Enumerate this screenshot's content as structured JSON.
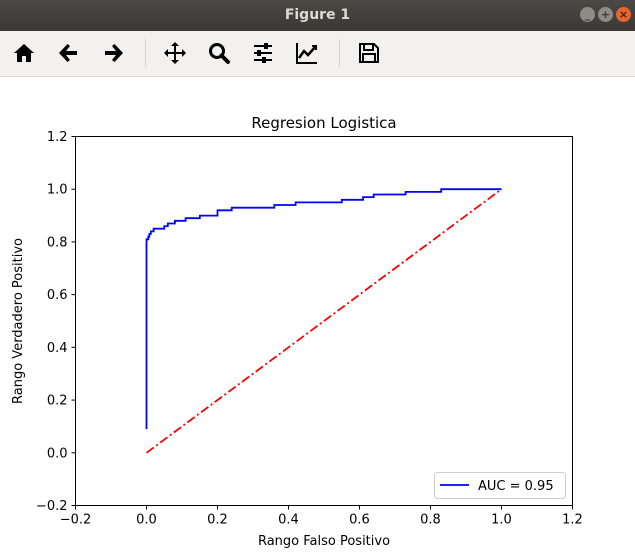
{
  "window": {
    "title": "Figure 1",
    "controls": [
      "_",
      "+",
      "×"
    ]
  },
  "toolbar": {
    "icons": [
      "home-icon",
      "back-arrow-icon",
      "forward-arrow-icon",
      "pan-move-icon",
      "zoom-magnifier-icon",
      "subplots-config-icon",
      "edit-axes-icon",
      "save-floppy-icon"
    ]
  },
  "colors": {
    "roc_line": "#0000ff",
    "diagonal": "#ff0000",
    "titlebar": "#3c3b37",
    "toolbar": "#f2f1f0"
  },
  "chart_data": {
    "type": "line",
    "title": "Regresion Logistica",
    "xlabel": "Rango Falso Positivo",
    "ylabel": "Rango Verdadero Positivo",
    "xlim": [
      -0.2,
      1.2
    ],
    "ylim": [
      -0.2,
      1.2
    ],
    "xticks": [
      -0.2,
      0.0,
      0.2,
      0.4,
      0.6,
      0.8,
      1.0,
      1.2
    ],
    "yticks": [
      -0.2,
      0.0,
      0.2,
      0.4,
      0.6,
      0.8,
      1.0,
      1.2
    ],
    "xtick_labels": [
      "−0.2",
      "0.0",
      "0.2",
      "0.4",
      "0.6",
      "0.8",
      "1.0",
      "1.2"
    ],
    "ytick_labels": [
      "−0.2",
      "0.0",
      "0.2",
      "0.4",
      "0.6",
      "0.8",
      "1.0",
      "1.2"
    ],
    "grid": false,
    "legend": {
      "position": "lower-right",
      "entries": [
        "AUC = 0.95"
      ]
    },
    "series": [
      {
        "name": "AUC = 0.95",
        "style": "solid",
        "color": "#0000ff",
        "x": [
          0.0,
          0.0,
          0.0,
          0.0,
          0.005,
          0.005,
          0.008,
          0.008,
          0.012,
          0.012,
          0.02,
          0.02,
          0.05,
          0.05,
          0.06,
          0.06,
          0.08,
          0.08,
          0.11,
          0.11,
          0.15,
          0.15,
          0.2,
          0.2,
          0.24,
          0.24,
          0.36,
          0.36,
          0.42,
          0.42,
          0.55,
          0.55,
          0.61,
          0.61,
          0.64,
          0.64,
          0.73,
          0.73,
          0.83,
          0.83,
          1.0
        ],
        "y": [
          0.09,
          0.76,
          0.8,
          0.81,
          0.81,
          0.82,
          0.82,
          0.83,
          0.83,
          0.84,
          0.84,
          0.85,
          0.85,
          0.86,
          0.86,
          0.87,
          0.87,
          0.88,
          0.88,
          0.89,
          0.89,
          0.9,
          0.9,
          0.92,
          0.92,
          0.93,
          0.93,
          0.94,
          0.94,
          0.95,
          0.95,
          0.96,
          0.96,
          0.97,
          0.97,
          0.98,
          0.98,
          0.99,
          0.99,
          1.0,
          1.0
        ]
      },
      {
        "style": "dashdot",
        "color": "#ff0000",
        "x": [
          0.0,
          1.0
        ],
        "y": [
          0.0,
          1.0
        ]
      }
    ]
  }
}
